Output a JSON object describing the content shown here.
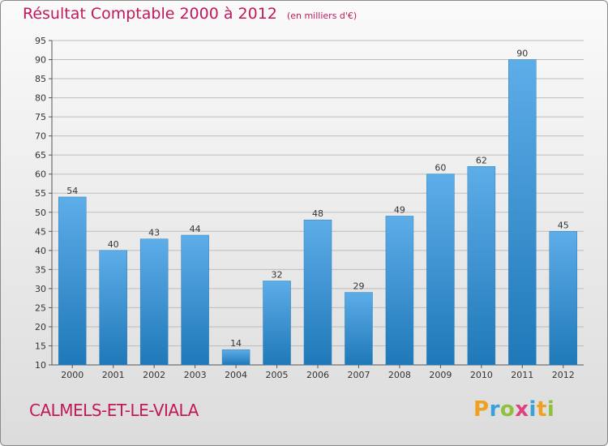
{
  "title": "Résultat Comptable 2000 à 2012",
  "subtitle": "(en milliers d'€)",
  "place": "CALMELS-ET-LE-VIALA",
  "logo": {
    "letters": [
      "P",
      "r",
      "o",
      "x",
      "i",
      "t",
      "i"
    ],
    "colors": [
      "#f0a020",
      "#3aa0d8",
      "#90c040",
      "#e04080",
      "#3aa0d8",
      "#f0a020",
      "#90c040"
    ]
  },
  "colors": {
    "title": "#c2185b",
    "bar_top": "#5dade8",
    "bar_bottom": "#1f78b8",
    "grid": "#bdbdbd"
  },
  "chart_data": {
    "type": "bar",
    "title": "Résultat Comptable 2000 à 2012",
    "subtitle": "(en milliers d'€)",
    "categories": [
      "2000",
      "2001",
      "2002",
      "2003",
      "2004",
      "2005",
      "2006",
      "2007",
      "2008",
      "2009",
      "2010",
      "2011",
      "2012"
    ],
    "values": [
      54,
      40,
      43,
      44,
      14,
      32,
      48,
      29,
      49,
      60,
      62,
      90,
      45
    ],
    "ylim": [
      10,
      95
    ],
    "yticks": [
      10,
      15,
      20,
      25,
      30,
      35,
      40,
      45,
      50,
      55,
      60,
      65,
      70,
      75,
      80,
      85,
      90,
      95
    ],
    "grid": true,
    "data_labels": true
  }
}
